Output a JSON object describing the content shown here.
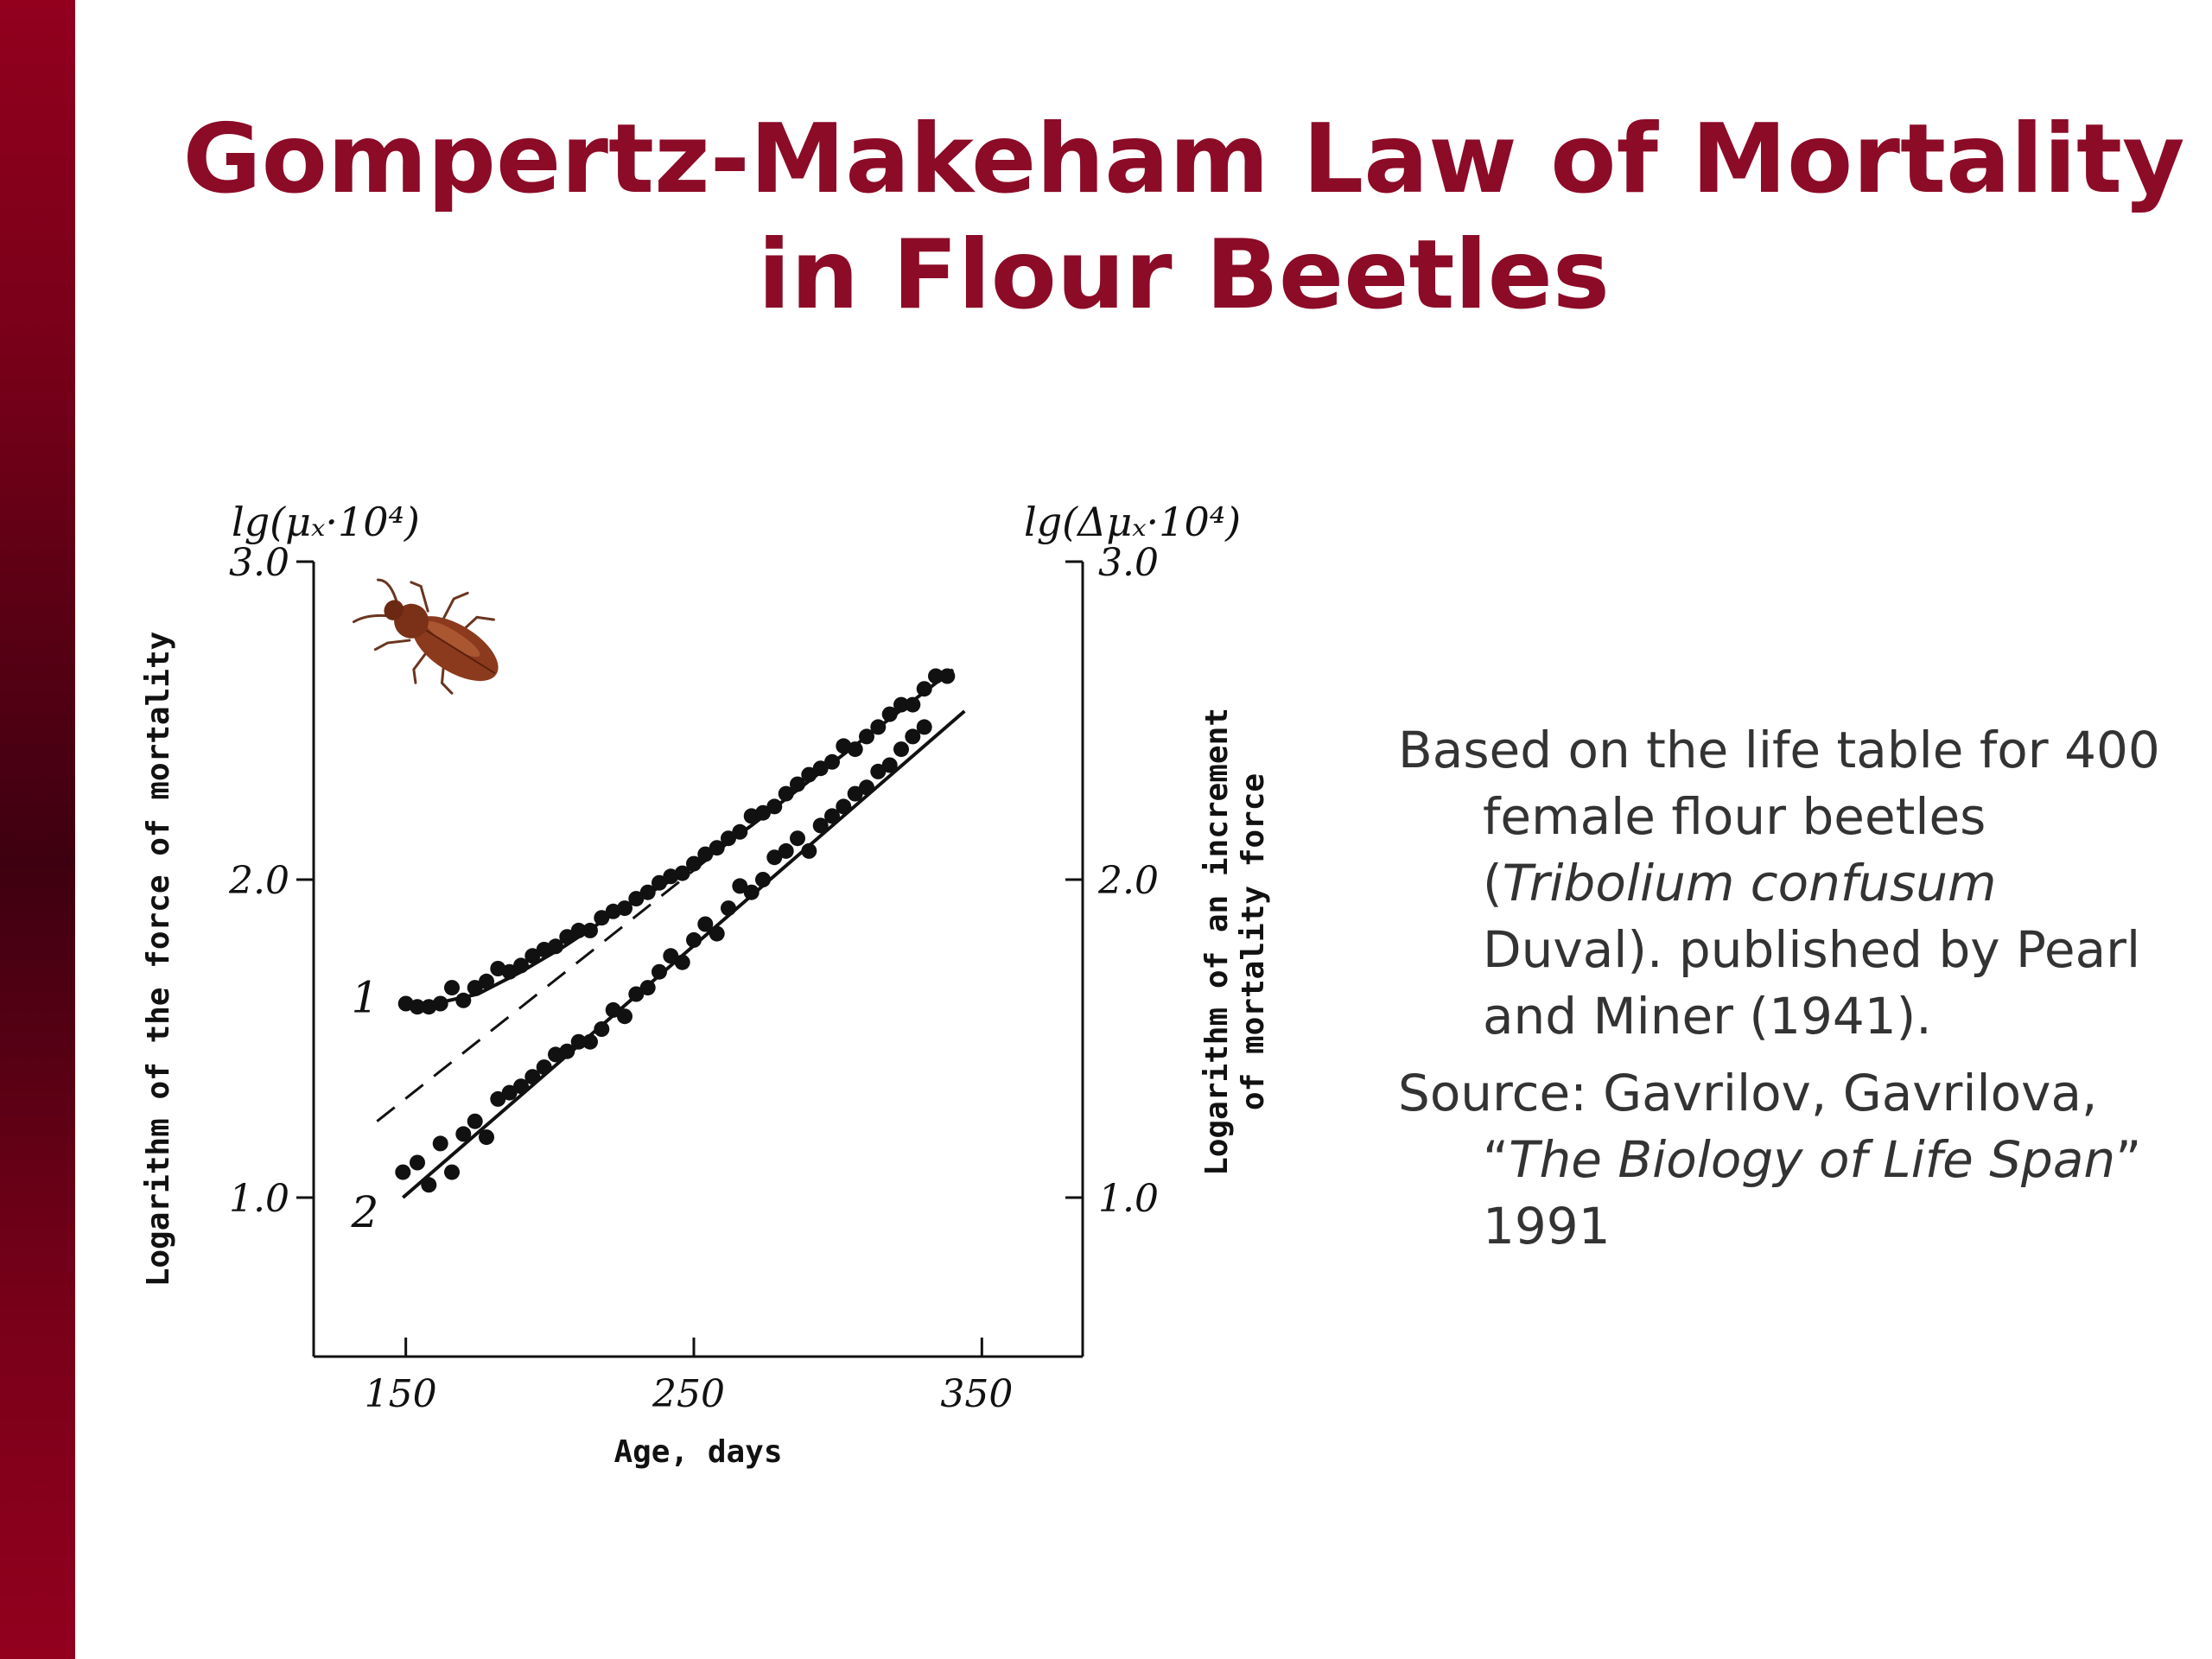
{
  "slide": {
    "title_line1": "Gompertz-Makeham Law of Mortality",
    "title_line2": "in Flour Beetles",
    "accent_color": "#8c0b27",
    "sidebar_color": "#7a0019"
  },
  "notes": {
    "p1_prefix": "Based on the life table for 400 female flour beetles (",
    "p1_italic": "Tribolium confusum",
    "p1_suffix": " Duval). published by Pearl and Miner (1941).",
    "p2_prefix": "Source: Gavrilov, Gavrilova, “",
    "p2_italic": "The Biology of Life Span",
    "p2_suffix": "” 1991"
  },
  "chart_data": {
    "type": "scatter",
    "xlabel": "Age, days",
    "ylabel_left": "Logarithm of the force of mortality",
    "ylabel_right_line1": "Logarithm of an increment",
    "ylabel_right_line2": "of mortality force",
    "left_axis_unit": "lg(μₓ·10⁴)",
    "right_axis_unit": "lg(Δμₓ·10⁴)",
    "xlim": [
      118,
      385
    ],
    "ylim": [
      0.5,
      3.0
    ],
    "x_ticks": [
      150,
      250,
      350
    ],
    "x_tick_labels": [
      "150",
      "250",
      "350"
    ],
    "y_ticks": [
      1.0,
      2.0,
      3.0
    ],
    "y_tick_labels": [
      "1.0",
      "2.0",
      "3.0"
    ],
    "icon": "flour-beetle-icon",
    "series": [
      {
        "name": "1",
        "axis": "left",
        "points": [
          [
            150,
            1.61
          ],
          [
            154,
            1.6
          ],
          [
            158,
            1.6
          ],
          [
            162,
            1.61
          ],
          [
            166,
            1.66
          ],
          [
            170,
            1.62
          ],
          [
            174,
            1.66
          ],
          [
            178,
            1.68
          ],
          [
            182,
            1.72
          ],
          [
            186,
            1.71
          ],
          [
            190,
            1.73
          ],
          [
            194,
            1.76
          ],
          [
            198,
            1.78
          ],
          [
            202,
            1.79
          ],
          [
            206,
            1.82
          ],
          [
            210,
            1.84
          ],
          [
            214,
            1.84
          ],
          [
            218,
            1.88
          ],
          [
            222,
            1.9
          ],
          [
            226,
            1.91
          ],
          [
            230,
            1.94
          ],
          [
            234,
            1.96
          ],
          [
            238,
            1.99
          ],
          [
            242,
            2.01
          ],
          [
            246,
            2.02
          ],
          [
            250,
            2.05
          ],
          [
            254,
            2.08
          ],
          [
            258,
            2.1
          ],
          [
            262,
            2.13
          ],
          [
            266,
            2.15
          ],
          [
            270,
            2.2
          ],
          [
            274,
            2.21
          ],
          [
            278,
            2.23
          ],
          [
            282,
            2.27
          ],
          [
            286,
            2.3
          ],
          [
            290,
            2.33
          ],
          [
            294,
            2.35
          ],
          [
            298,
            2.37
          ],
          [
            302,
            2.42
          ],
          [
            306,
            2.41
          ],
          [
            310,
            2.45
          ],
          [
            314,
            2.48
          ],
          [
            318,
            2.52
          ],
          [
            322,
            2.55
          ],
          [
            326,
            2.55
          ],
          [
            330,
            2.6
          ],
          [
            334,
            2.64
          ],
          [
            338,
            2.64
          ]
        ],
        "curve": [
          [
            149,
            1.61
          ],
          [
            160,
            1.61
          ],
          [
            175,
            1.64
          ],
          [
            190,
            1.71
          ],
          [
            205,
            1.79
          ],
          [
            220,
            1.88
          ],
          [
            235,
            1.96
          ],
          [
            250,
            2.04
          ],
          [
            270,
            2.17
          ],
          [
            290,
            2.31
          ],
          [
            310,
            2.45
          ],
          [
            330,
            2.59
          ],
          [
            340,
            2.66
          ]
        ],
        "dashed_asymptote": [
          [
            140,
            1.24
          ],
          [
            264,
            2.13
          ]
        ]
      },
      {
        "name": "2",
        "axis": "right",
        "points": [
          [
            149,
            1.08
          ],
          [
            154,
            1.11
          ],
          [
            158,
            1.04
          ],
          [
            162,
            1.17
          ],
          [
            166,
            1.08
          ],
          [
            170,
            1.2
          ],
          [
            174,
            1.24
          ],
          [
            178,
            1.19
          ],
          [
            182,
            1.31
          ],
          [
            186,
            1.33
          ],
          [
            190,
            1.35
          ],
          [
            194,
            1.38
          ],
          [
            198,
            1.41
          ],
          [
            202,
            1.45
          ],
          [
            206,
            1.46
          ],
          [
            210,
            1.49
          ],
          [
            214,
            1.49
          ],
          [
            218,
            1.53
          ],
          [
            222,
            1.59
          ],
          [
            226,
            1.57
          ],
          [
            230,
            1.64
          ],
          [
            234,
            1.66
          ],
          [
            238,
            1.71
          ],
          [
            242,
            1.76
          ],
          [
            246,
            1.74
          ],
          [
            250,
            1.81
          ],
          [
            254,
            1.86
          ],
          [
            258,
            1.83
          ],
          [
            262,
            1.91
          ],
          [
            266,
            1.98
          ],
          [
            270,
            1.96
          ],
          [
            274,
            2.0
          ],
          [
            278,
            2.07
          ],
          [
            282,
            2.09
          ],
          [
            286,
            2.13
          ],
          [
            290,
            2.09
          ],
          [
            294,
            2.17
          ],
          [
            298,
            2.2
          ],
          [
            302,
            2.23
          ],
          [
            306,
            2.27
          ],
          [
            310,
            2.29
          ],
          [
            314,
            2.34
          ],
          [
            318,
            2.36
          ],
          [
            322,
            2.41
          ],
          [
            326,
            2.45
          ],
          [
            330,
            2.48
          ]
        ],
        "fit_line": [
          [
            149,
            1.0
          ],
          [
            344,
            2.53
          ]
        ]
      }
    ]
  }
}
